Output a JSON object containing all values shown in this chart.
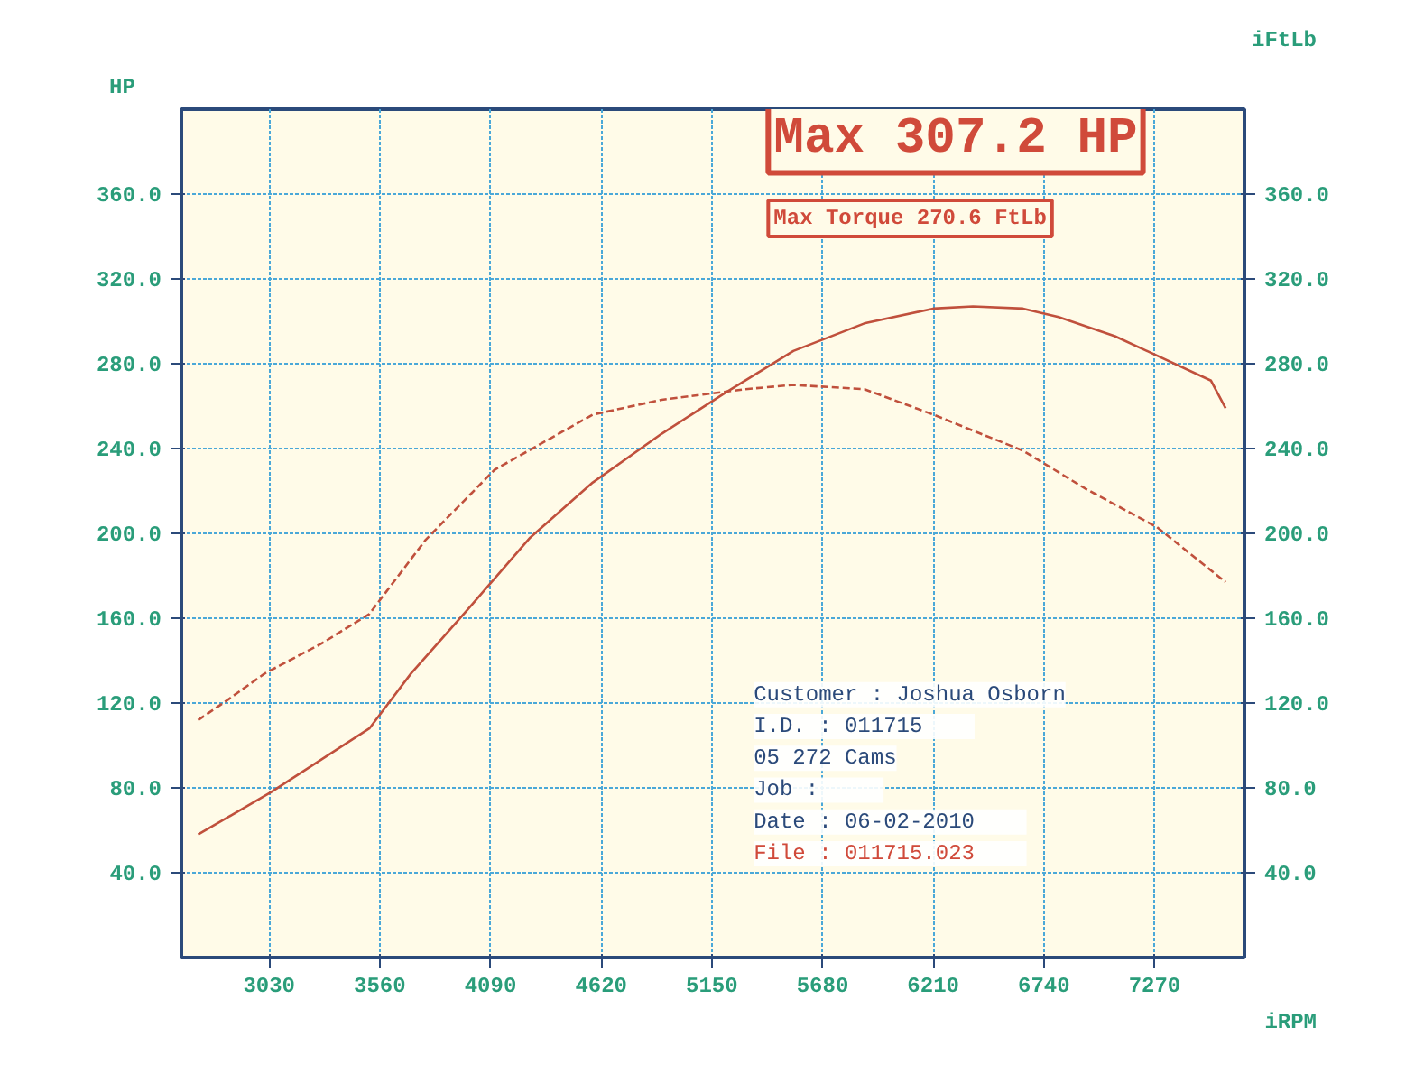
{
  "chart_data": {
    "type": "line",
    "ylabel": "HP",
    "y2label": "iFtLb",
    "xlabel": "iRPM",
    "xlim": [
      2610,
      7700
    ],
    "xticks": [
      3030,
      3560,
      4090,
      4620,
      5150,
      5680,
      6210,
      6740,
      7270
    ],
    "ylim": [
      0,
      400
    ],
    "yticks": [
      {
        "value": 40,
        "label": "40.0"
      },
      {
        "value": 80,
        "label": "80.0"
      },
      {
        "value": 120,
        "label": "120.0"
      },
      {
        "value": 160,
        "label": "160.0"
      },
      {
        "value": 200,
        "label": "200.0"
      },
      {
        "value": 240,
        "label": "240.0"
      },
      {
        "value": 280,
        "label": "280.0"
      },
      {
        "value": 320,
        "label": "320.0"
      },
      {
        "value": 360,
        "label": "360.0"
      }
    ],
    "y2lim": [
      0,
      400
    ],
    "y2ticks": [
      {
        "value": 40,
        "label": "40.0"
      },
      {
        "value": 80,
        "label": "80.0"
      },
      {
        "value": 120,
        "label": "120.0"
      },
      {
        "value": 160,
        "label": "160.0"
      },
      {
        "value": 200,
        "label": "200.0"
      },
      {
        "value": 240,
        "label": "240.0"
      },
      {
        "value": 280,
        "label": "280.0"
      },
      {
        "value": 320,
        "label": "320.0"
      },
      {
        "value": 360,
        "label": "360.0"
      }
    ],
    "grid": true,
    "series": [
      {
        "color": "#c0503c",
        "line_style": "solid",
        "x": [
          2690,
          3040,
          3510,
          3710,
          3980,
          4280,
          4580,
          4910,
          5210,
          5540,
          5880,
          6210,
          6400,
          6640,
          6810,
          7080,
          7540,
          7610
        ],
        "values": [
          58,
          78,
          108,
          134,
          164,
          198,
          224,
          247,
          266,
          286,
          299,
          306,
          307,
          306,
          302,
          293,
          272,
          259
        ]
      },
      {
        "color": "#c0503c",
        "line_style": "dashed",
        "axis": "y2",
        "x": [
          2690,
          2810,
          3010,
          3280,
          3510,
          3780,
          4110,
          4580,
          4910,
          5310,
          5540,
          5880,
          6210,
          6640,
          6940,
          7280,
          7610
        ],
        "values": [
          112,
          120,
          134,
          148,
          162,
          197,
          230,
          256,
          263,
          268,
          270,
          268,
          256,
          239,
          221,
          203,
          177
        ]
      }
    ],
    "annotations": [
      "Max 307.2 HP",
      "Max Torque 270.6 FtLb",
      "Customer : Joshua Osborn",
      "I.D.     : 011715",
      "05 272 Cams",
      "Job      :",
      "Date     : 06-02-2010",
      "File     : 011715.023"
    ]
  }
}
